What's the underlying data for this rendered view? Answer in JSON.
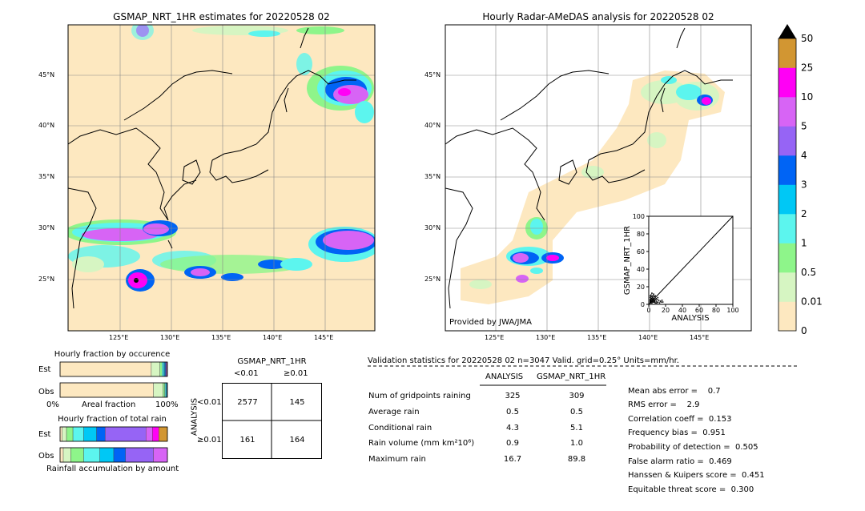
{
  "left_map": {
    "title": "GSMAP_NRT_1HR estimates for 20220528 02",
    "lat_labels": [
      "45°N",
      "40°N",
      "35°N",
      "30°N",
      "25°N"
    ],
    "lon_labels": [
      "125°E",
      "130°E",
      "135°E",
      "140°E",
      "145°E"
    ]
  },
  "right_map": {
    "title": "Hourly Radar-AMeDAS analysis for 20220528 02",
    "lat_labels": [
      "45°N",
      "40°N",
      "35°N",
      "30°N",
      "25°N"
    ],
    "lon_labels": [
      "125°E",
      "130°E",
      "135°E",
      "140°E",
      "145°E"
    ],
    "credit": "Provided by JWA/JMA"
  },
  "scatter": {
    "ylabel": "GSMAP_NRT_1HR",
    "xlabel": "ANALYSIS",
    "ticks": [
      "0",
      "20",
      "40",
      "60",
      "80",
      "100"
    ]
  },
  "colorbar": {
    "labels": [
      "0",
      "0.01",
      "0.5",
      "1",
      "2",
      "3",
      "4",
      "5",
      "10",
      "25",
      "50"
    ],
    "colors": [
      "#fde8c0",
      "#d6f5c2",
      "#8ef58a",
      "#5cf5ee",
      "#00c8f5",
      "#0064f5",
      "#9664f5",
      "#d764f5",
      "#ff00f5",
      "#d29632"
    ],
    "over_color": "#000000"
  },
  "occurrence": {
    "title": "Hourly fraction by occurence",
    "rows": [
      "Est",
      "Obs"
    ],
    "axis_left": "0%",
    "axis_mid": "Areal fraction",
    "axis_right": "100%"
  },
  "total_rain": {
    "title": "Hourly fraction of total rain",
    "rows": [
      "Est",
      "Obs"
    ],
    "footer": "Rainfall accumulation by amount"
  },
  "contingency": {
    "title": "GSMAP_NRT_1HR",
    "col_headers": [
      "<0.01",
      "≥0.01"
    ],
    "row_axis": "ANALYSIS",
    "row_headers": [
      "<0.01",
      "≥0.01"
    ],
    "cells": [
      [
        "2577",
        "145"
      ],
      [
        "161",
        "164"
      ]
    ]
  },
  "validation": {
    "header": "Validation statistics for 20220528 02  n=3047 Valid. grid=0.25° Units=mm/hr.",
    "columns": [
      "ANALYSIS",
      "GSMAP_NRT_1HR"
    ],
    "rows": [
      {
        "label": "Num of gridpoints raining",
        "analysis": "325",
        "gsmap": "309"
      },
      {
        "label": "Average rain",
        "analysis": "0.5",
        "gsmap": "0.5"
      },
      {
        "label": "Conditional rain",
        "analysis": "4.3",
        "gsmap": "5.1"
      },
      {
        "label": "Rain volume (mm km²10⁶)",
        "analysis": "0.9",
        "gsmap": "1.0"
      },
      {
        "label": "Maximum rain",
        "analysis": "16.7",
        "gsmap": "89.8"
      }
    ],
    "scores": [
      "Mean abs error =    0.7",
      "RMS error =    2.9",
      "Correlation coeff =  0.153",
      "Frequency bias =  0.951",
      "Probability of detection =  0.505",
      "False alarm ratio =  0.469",
      "Hanssen & Kuipers score =  0.451",
      "Equitable threat score =  0.300"
    ]
  },
  "chart_data": [
    {
      "type": "heatmap",
      "title": "GSMAP_NRT_1HR estimates for 20220528 02",
      "x_ticks": [
        "125°E",
        "130°E",
        "135°E",
        "140°E",
        "145°E"
      ],
      "y_ticks": [
        "45°N",
        "40°N",
        "35°N",
        "30°N",
        "25°N"
      ]
    },
    {
      "type": "heatmap",
      "title": "Hourly Radar-AMeDAS analysis for 20220528 02",
      "x_ticks": [
        "125°E",
        "130°E",
        "135°E",
        "140°E",
        "145°E"
      ],
      "y_ticks": [
        "45°N",
        "40°N",
        "35°N",
        "30°N",
        "25°N"
      ]
    },
    {
      "type": "scatter",
      "xlabel": "ANALYSIS",
      "ylabel": "GSMAP_NRT_1HR",
      "xlim": [
        0,
        100
      ],
      "ylim": [
        0,
        100
      ]
    },
    {
      "type": "bar",
      "title": "Hourly fraction by occurence",
      "categories": [
        "Est",
        "Obs"
      ],
      "series": [
        {
          "values": [
            0.85,
            0.87
          ]
        },
        {
          "values": [
            0.08,
            0.09
          ]
        },
        {
          "values": [
            0.02,
            0.015
          ]
        },
        {
          "values": [
            0.015,
            0.01
          ]
        },
        {
          "values": [
            0.01,
            0.008
          ]
        },
        {
          "values": [
            0.008,
            0.004
          ]
        },
        {
          "values": [
            0.006,
            0.002
          ]
        },
        {
          "values": [
            0.006,
            0.001
          ]
        },
        {
          "values": [
            0.005,
            0.0
          ]
        }
      ]
    },
    {
      "type": "bar",
      "title": "Hourly fraction of total rain",
      "categories": [
        "Est",
        "Obs"
      ],
      "series": [
        {
          "values": [
            0.02,
            0.03
          ]
        },
        {
          "values": [
            0.04,
            0.07
          ]
        },
        {
          "values": [
            0.06,
            0.12
          ]
        },
        {
          "values": [
            0.1,
            0.15
          ]
        },
        {
          "values": [
            0.12,
            0.13
          ]
        },
        {
          "values": [
            0.08,
            0.11
          ]
        },
        {
          "values": [
            0.38,
            0.26
          ]
        },
        {
          "values": [
            0.06,
            0.13
          ]
        },
        {
          "values": [
            0.06,
            0.0
          ]
        },
        {
          "values": [
            0.08,
            0.0
          ]
        }
      ]
    }
  ]
}
